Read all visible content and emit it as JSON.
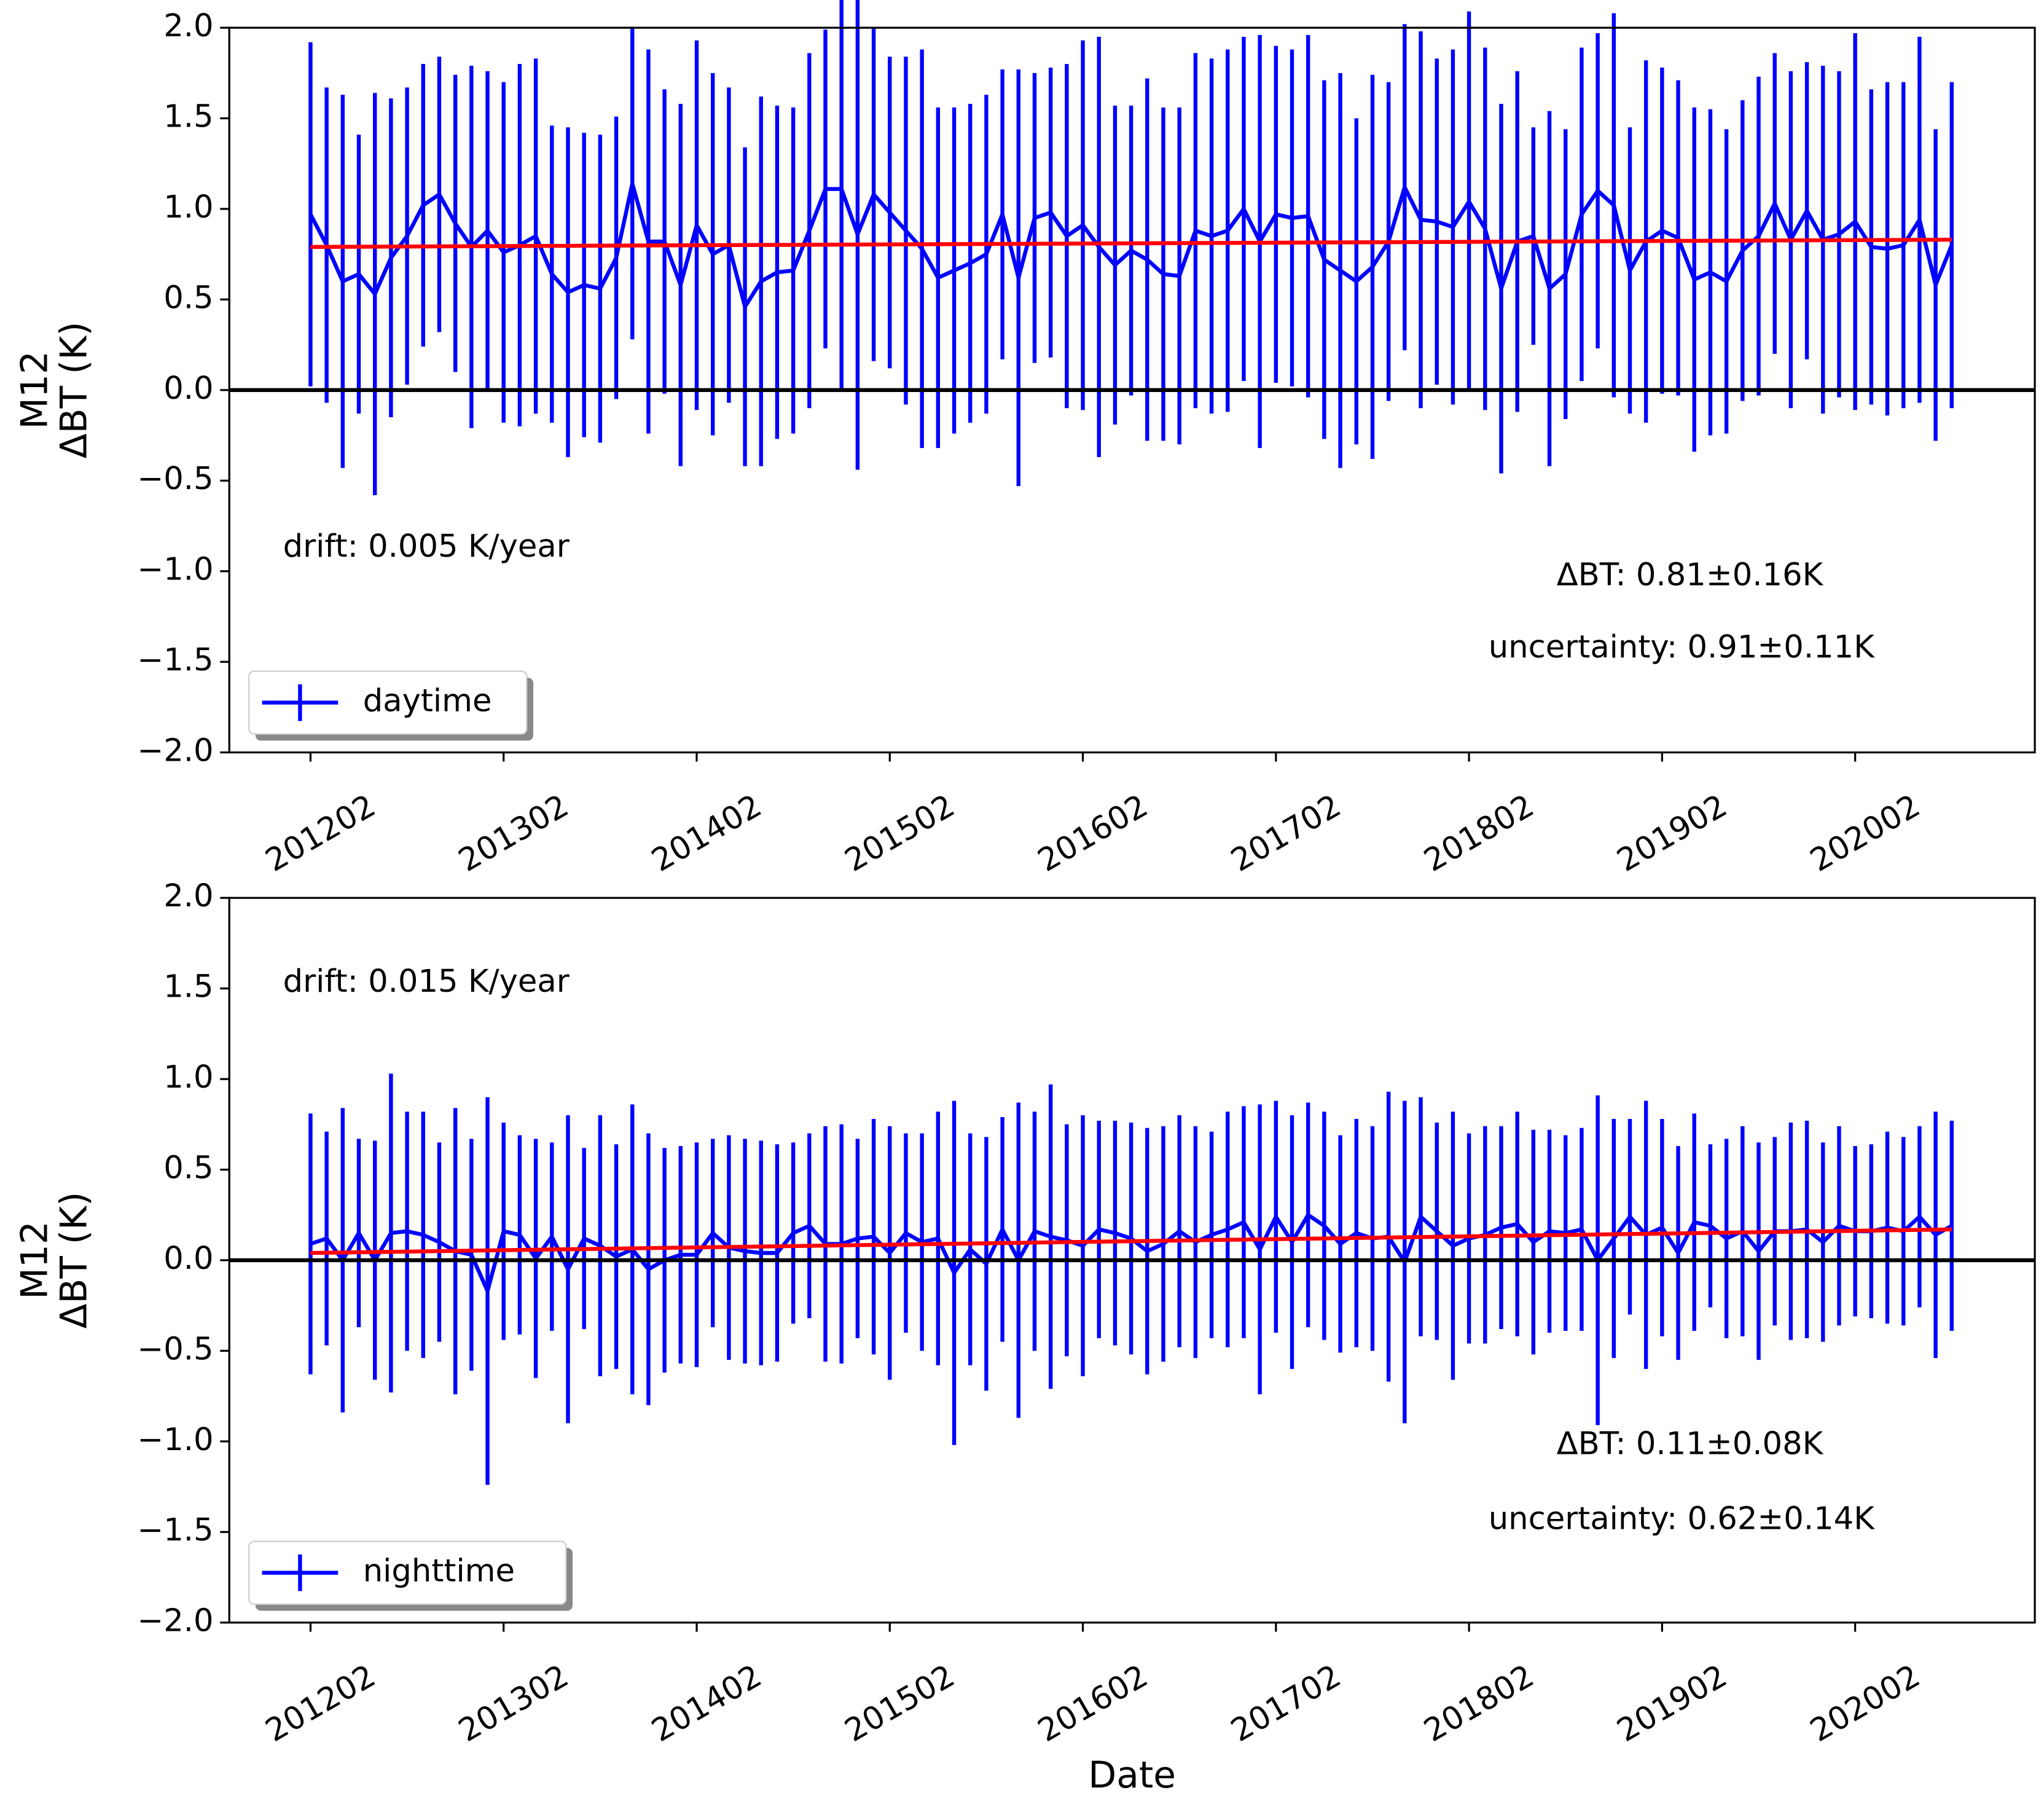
{
  "chart_data": [
    {
      "type": "line",
      "ylabel": [
        "M12",
        "ΔBT (K)"
      ],
      "categories": [
        "201202",
        "201203",
        "201204",
        "201205",
        "201206",
        "201207",
        "201208",
        "201209",
        "201210",
        "201211",
        "201212",
        "201301",
        "201302",
        "201303",
        "201304",
        "201305",
        "201306",
        "201307",
        "201308",
        "201309",
        "201310",
        "201311",
        "201312",
        "201401",
        "201402",
        "201403",
        "201404",
        "201405",
        "201406",
        "201407",
        "201408",
        "201409",
        "201410",
        "201411",
        "201412",
        "201501",
        "201502",
        "201503",
        "201504",
        "201505",
        "201506",
        "201507",
        "201508",
        "201509",
        "201510",
        "201511",
        "201512",
        "201601",
        "201602",
        "201603",
        "201604",
        "201605",
        "201606",
        "201607",
        "201608",
        "201609",
        "201610",
        "201611",
        "201612",
        "201701",
        "201702",
        "201703",
        "201704",
        "201705",
        "201706",
        "201707",
        "201708",
        "201709",
        "201710",
        "201711",
        "201712",
        "201801",
        "201802",
        "201803",
        "201804",
        "201805",
        "201806",
        "201807",
        "201808",
        "201809",
        "201810",
        "201811",
        "201812",
        "201901",
        "201902",
        "201903",
        "201904",
        "201905",
        "201906",
        "201907",
        "201908",
        "201909",
        "201910",
        "201911",
        "201912",
        "202001",
        "202002",
        "202003",
        "202004",
        "202005",
        "202006",
        "202007",
        "202008"
      ],
      "xticks": [
        "201202",
        "201302",
        "201402",
        "201502",
        "201602",
        "201702",
        "201802",
        "201902",
        "202002"
      ],
      "series": [
        {
          "name": "daytime",
          "color": "#0000ff",
          "values": [
            0.97,
            0.8,
            0.6,
            0.64,
            0.53,
            0.73,
            0.85,
            1.02,
            1.08,
            0.92,
            0.79,
            0.88,
            0.76,
            0.8,
            0.85,
            0.64,
            0.54,
            0.58,
            0.56,
            0.73,
            1.14,
            0.82,
            0.82,
            0.58,
            0.91,
            0.75,
            0.8,
            0.46,
            0.6,
            0.65,
            0.66,
            0.88,
            1.11,
            1.11,
            0.86,
            1.08,
            0.98,
            0.88,
            0.78,
            0.62,
            0.66,
            0.7,
            0.75,
            0.97,
            0.62,
            0.95,
            0.98,
            0.85,
            0.91,
            0.79,
            0.69,
            0.77,
            0.72,
            0.64,
            0.63,
            0.88,
            0.85,
            0.88,
            1.0,
            0.82,
            0.97,
            0.95,
            0.96,
            0.72,
            0.66,
            0.6,
            0.68,
            0.82,
            1.12,
            0.94,
            0.93,
            0.9,
            1.04,
            0.89,
            0.56,
            0.82,
            0.85,
            0.56,
            0.64,
            0.97,
            1.1,
            1.02,
            0.66,
            0.82,
            0.88,
            0.84,
            0.61,
            0.65,
            0.6,
            0.77,
            0.85,
            1.03,
            0.83,
            0.99,
            0.83,
            0.86,
            0.93,
            0.79,
            0.78,
            0.8,
            0.94,
            0.58,
            0.8
          ],
          "errors": [
            0.95,
            0.87,
            1.03,
            0.77,
            1.11,
            0.88,
            0.82,
            0.78,
            0.76,
            0.82,
            1.0,
            0.88,
            0.94,
            1.0,
            0.98,
            0.82,
            0.91,
            0.84,
            0.85,
            0.78,
            0.86,
            1.06,
            0.84,
            1.0,
            1.02,
            1.0,
            0.87,
            0.88,
            1.02,
            0.92,
            0.9,
            0.98,
            0.88,
            1.12,
            1.3,
            0.92,
            0.86,
            0.96,
            1.1,
            0.94,
            0.9,
            0.88,
            0.88,
            0.8,
            1.15,
            0.8,
            0.8,
            0.95,
            1.02,
            1.16,
            0.88,
            0.8,
            1.0,
            0.92,
            0.93,
            0.98,
            0.98,
            1.0,
            0.95,
            1.14,
            0.93,
            0.93,
            1.0,
            0.99,
            1.09,
            0.9,
            1.06,
            0.88,
            0.9,
            1.04,
            0.9,
            0.98,
            1.05,
            1.0,
            1.02,
            0.94,
            0.6,
            0.98,
            0.8,
            0.92,
            0.87,
            1.06,
            0.79,
            1.0,
            0.9,
            0.87,
            0.95,
            0.9,
            0.84,
            0.83,
            0.88,
            0.83,
            0.93,
            0.82,
            0.96,
            0.9,
            1.04,
            0.87,
            0.92,
            0.9,
            1.01,
            0.86,
            0.9
          ]
        }
      ],
      "trend": {
        "color": "#ff0000",
        "x": [
          "201202",
          "202008"
        ],
        "values": [
          0.79,
          0.83
        ]
      },
      "reference_line": 0,
      "ylim": [
        -2,
        2
      ],
      "yticks": [
        {
          "value": -2,
          "label": "−2.0"
        },
        {
          "value": -1.5,
          "label": "−1.5"
        },
        {
          "value": -1,
          "label": "−1.0"
        },
        {
          "value": -0.5,
          "label": "−0.5"
        },
        {
          "value": 0,
          "label": "0.0"
        },
        {
          "value": 0.5,
          "label": "0.5"
        },
        {
          "value": 1,
          "label": "1.0"
        },
        {
          "value": 1.5,
          "label": "1.5"
        },
        {
          "value": 2,
          "label": "2.0"
        }
      ],
      "annotations": [
        "drift: 0.005 K/year",
        "ΔBT: 0.81±0.16K",
        "uncertainty: 0.91±0.11K"
      ],
      "legend": "lower left"
    },
    {
      "type": "line",
      "ylabel": [
        "M12",
        "ΔBT (K)"
      ],
      "xlabel": "Date",
      "categories": [
        "201202",
        "201203",
        "201204",
        "201205",
        "201206",
        "201207",
        "201208",
        "201209",
        "201210",
        "201211",
        "201212",
        "201301",
        "201302",
        "201303",
        "201304",
        "201305",
        "201306",
        "201307",
        "201308",
        "201309",
        "201310",
        "201311",
        "201312",
        "201401",
        "201402",
        "201403",
        "201404",
        "201405",
        "201406",
        "201407",
        "201408",
        "201409",
        "201410",
        "201411",
        "201412",
        "201501",
        "201502",
        "201503",
        "201504",
        "201505",
        "201506",
        "201507",
        "201508",
        "201509",
        "201510",
        "201511",
        "201512",
        "201601",
        "201602",
        "201603",
        "201604",
        "201605",
        "201606",
        "201607",
        "201608",
        "201609",
        "201610",
        "201611",
        "201612",
        "201701",
        "201702",
        "201703",
        "201704",
        "201705",
        "201706",
        "201707",
        "201708",
        "201709",
        "201710",
        "201711",
        "201712",
        "201801",
        "201802",
        "201803",
        "201804",
        "201805",
        "201806",
        "201807",
        "201808",
        "201809",
        "201810",
        "201811",
        "201812",
        "201901",
        "201902",
        "201903",
        "201904",
        "201905",
        "201906",
        "201907",
        "201908",
        "201909",
        "201910",
        "201911",
        "201912",
        "202001",
        "202002",
        "202003",
        "202004",
        "202005",
        "202006",
        "202007",
        "202008"
      ],
      "xticks": [
        "201202",
        "201302",
        "201402",
        "201502",
        "201602",
        "201702",
        "201802",
        "201902",
        "202002"
      ],
      "series": [
        {
          "name": "nighttime",
          "color": "#0000ff",
          "values": [
            0.09,
            0.12,
            0.0,
            0.15,
            0.0,
            0.15,
            0.16,
            0.14,
            0.1,
            0.05,
            0.03,
            -0.17,
            0.16,
            0.14,
            0.01,
            0.13,
            -0.05,
            0.12,
            0.08,
            0.02,
            0.06,
            -0.05,
            0.0,
            0.03,
            0.03,
            0.15,
            0.07,
            0.05,
            0.04,
            0.04,
            0.15,
            0.19,
            0.09,
            0.09,
            0.12,
            0.13,
            0.04,
            0.15,
            0.1,
            0.12,
            -0.07,
            0.06,
            -0.02,
            0.17,
            0.0,
            0.16,
            0.13,
            0.11,
            0.08,
            0.17,
            0.15,
            0.12,
            0.05,
            0.09,
            0.16,
            0.1,
            0.14,
            0.17,
            0.21,
            0.06,
            0.24,
            0.1,
            0.25,
            0.19,
            0.09,
            0.15,
            0.12,
            0.13,
            -0.01,
            0.24,
            0.16,
            0.08,
            0.12,
            0.14,
            0.18,
            0.2,
            0.1,
            0.16,
            0.15,
            0.17,
            0.0,
            0.12,
            0.24,
            0.14,
            0.18,
            0.04,
            0.21,
            0.19,
            0.12,
            0.16,
            0.05,
            0.16,
            0.16,
            0.17,
            0.1,
            0.19,
            0.16,
            0.16,
            0.18,
            0.16,
            0.24,
            0.14,
            0.19
          ],
          "errors": [
            0.72,
            0.59,
            0.84,
            0.52,
            0.66,
            0.88,
            0.66,
            0.68,
            0.55,
            0.79,
            0.64,
            1.07,
            0.6,
            0.55,
            0.66,
            0.52,
            0.85,
            0.5,
            0.72,
            0.62,
            0.8,
            0.75,
            0.62,
            0.6,
            0.62,
            0.52,
            0.62,
            0.62,
            0.62,
            0.6,
            0.5,
            0.51,
            0.65,
            0.66,
            0.55,
            0.65,
            0.7,
            0.55,
            0.6,
            0.7,
            0.95,
            0.64,
            0.7,
            0.62,
            0.87,
            0.66,
            0.84,
            0.64,
            0.72,
            0.6,
            0.62,
            0.64,
            0.68,
            0.65,
            0.64,
            0.64,
            0.57,
            0.65,
            0.64,
            0.8,
            0.64,
            0.7,
            0.62,
            0.63,
            0.6,
            0.63,
            0.62,
            0.8,
            0.89,
            0.66,
            0.6,
            0.74,
            0.58,
            0.6,
            0.56,
            0.62,
            0.62,
            0.56,
            0.54,
            0.56,
            0.91,
            0.66,
            0.54,
            0.74,
            0.6,
            0.59,
            0.6,
            0.45,
            0.55,
            0.58,
            0.6,
            0.52,
            0.6,
            0.6,
            0.55,
            0.55,
            0.47,
            0.48,
            0.53,
            0.52,
            0.5,
            0.68,
            0.58
          ]
        }
      ],
      "trend": {
        "color": "#ff0000",
        "x": [
          "201202",
          "202008"
        ],
        "values": [
          0.04,
          0.17
        ]
      },
      "reference_line": 0,
      "ylim": [
        -2,
        2
      ],
      "yticks": [
        {
          "value": -2,
          "label": "−2.0"
        },
        {
          "value": -1.5,
          "label": "−1.5"
        },
        {
          "value": -1,
          "label": "−1.0"
        },
        {
          "value": -0.5,
          "label": "−0.5"
        },
        {
          "value": 0,
          "label": "0.0"
        },
        {
          "value": 0.5,
          "label": "0.5"
        },
        {
          "value": 1,
          "label": "1.0"
        },
        {
          "value": 1.5,
          "label": "1.5"
        },
        {
          "value": 2,
          "label": "2.0"
        }
      ],
      "annotations": [
        "drift: 0.015 K/year",
        "ΔBT: 0.11±0.08K",
        "uncertainty: 0.62±0.14K"
      ],
      "legend": "lower left"
    }
  ]
}
